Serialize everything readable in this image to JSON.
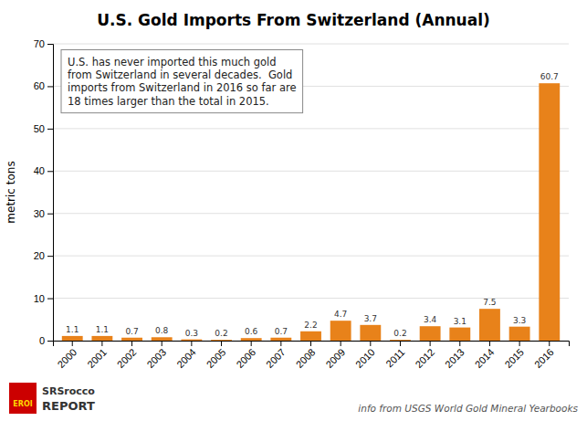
{
  "chart_data": {
    "type": "bar",
    "title": "U.S. Gold Imports From Switzerland (Annual)",
    "categories": [
      "2000",
      "2001",
      "2002",
      "2003",
      "2004",
      "2005",
      "2006",
      "2007",
      "2008",
      "2009",
      "2010",
      "2011",
      "2012",
      "2013",
      "2014",
      "2015",
      "2016"
    ],
    "values": [
      1.1,
      1.1,
      0.7,
      0.8,
      0.3,
      0.2,
      0.6,
      0.7,
      2.2,
      4.7,
      3.7,
      0.2,
      3.4,
      3.1,
      7.5,
      3.3,
      60.7
    ],
    "color": "#E8821A",
    "y_label": "metric tons",
    "ylim": [
      0,
      70
    ],
    "yticks": [
      0,
      10,
      20,
      30,
      40,
      50,
      60,
      70
    ],
    "grid": true,
    "data_labels": true,
    "annotations": [
      "U.S. has never imported this much gold\nfrom Switzerland in several decades.  Gold\nimports from Switzerland in 2016 so far are\n18 times larger than the total in 2015.",
      "info from USGS World Gold Mineral Yearbooks",
      "SRSrocco",
      "REPORT",
      "EROI"
    ]
  }
}
